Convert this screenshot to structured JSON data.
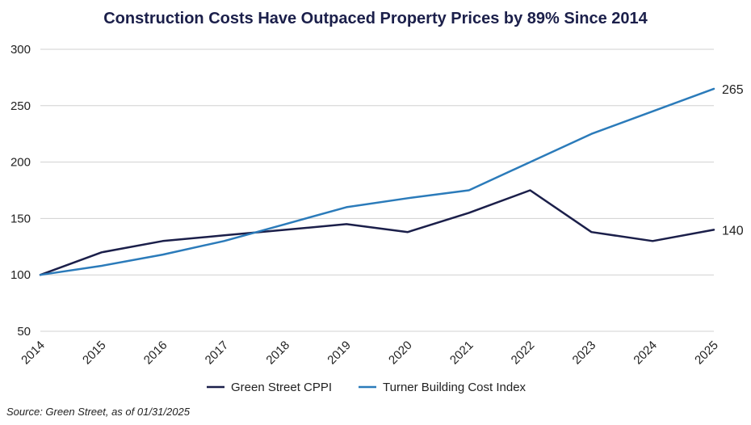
{
  "chart_data": {
    "type": "line",
    "title": "Construction Costs Have Outpaced Property Prices by 89% Since 2014",
    "xlabel": "",
    "ylabel": "",
    "categories": [
      "2014",
      "2015",
      "2016",
      "2017",
      "2018",
      "2019",
      "2020",
      "2021",
      "2022",
      "2023",
      "2024",
      "2025"
    ],
    "ylim": [
      50,
      300
    ],
    "yticks": [
      "300",
      "250",
      "200",
      "150",
      "100",
      "50"
    ],
    "grid": true,
    "series": [
      {
        "name": "Green Street CPPI",
        "color": "#1b1f4a",
        "values": [
          100,
          120,
          130,
          135,
          140,
          145,
          138,
          155,
          175,
          138,
          130,
          140
        ],
        "end_label": "140"
      },
      {
        "name": "Turner Building Cost Index",
        "color": "#2b7bba",
        "values": [
          100,
          108,
          118,
          130,
          145,
          160,
          168,
          175,
          200,
          225,
          245,
          265
        ],
        "end_label": "265"
      }
    ],
    "legend": "bottom-center",
    "source": "Source: Green Street, as of 01/31/2025"
  }
}
